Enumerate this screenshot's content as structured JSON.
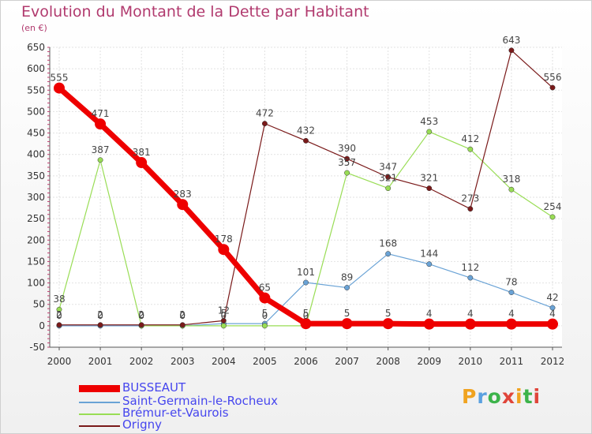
{
  "title": "Evolution du Montant de la Dette par Habitant",
  "unit": "(en €)",
  "brand": {
    "text": "Proxiti",
    "colors": [
      "#f0a320",
      "#5aa0e0",
      "#3cb34a",
      "#e0453a",
      "#f0a320",
      "#3cb34a",
      "#e0453a"
    ]
  },
  "chart_data": {
    "type": "line",
    "title": "Evolution du Montant de la Dette par Habitant",
    "ylabel": "(en €)",
    "x": [
      2000,
      2001,
      2002,
      2003,
      2004,
      2005,
      2006,
      2007,
      2008,
      2009,
      2010,
      2011,
      2012
    ],
    "ylim": [
      -50,
      650
    ],
    "yticks": [
      -50,
      0,
      50,
      100,
      150,
      200,
      250,
      300,
      350,
      400,
      450,
      500,
      550,
      600,
      650
    ],
    "grid": true,
    "legend_position": "bottom-left",
    "series": [
      {
        "name": "BUSSEAUT",
        "color": "#ee0000",
        "width": 7,
        "marker": 7,
        "values": [
          555,
          471,
          381,
          283,
          178,
          65,
          5,
          5,
          5,
          4,
          4,
          4,
          4
        ],
        "labels": [
          "555",
          "471",
          "381",
          "283",
          "178",
          "65",
          "5",
          "5",
          "5",
          "4",
          "4",
          "4",
          "4"
        ]
      },
      {
        "name": "Saint-Germain-le-Rocheux",
        "color": "#6aa3d6",
        "width": 1.2,
        "marker": 3.2,
        "values": [
          0,
          0,
          0,
          0,
          5,
          5,
          101,
          89,
          168,
          144,
          112,
          78,
          42
        ],
        "labels": [
          "0",
          "0",
          "0",
          "0",
          "5",
          "5",
          "101",
          "89",
          "168",
          "144",
          "112",
          "78",
          "42"
        ]
      },
      {
        "name": "Brémur-et-Vaurois",
        "color": "#99dd55",
        "width": 1.2,
        "marker": 3.2,
        "values": [
          38,
          387,
          0,
          0,
          0,
          0,
          0,
          357,
          321,
          453,
          412,
          318,
          254
        ],
        "labels": [
          "38",
          "387",
          "0",
          "0",
          "0",
          "0",
          "0",
          "357",
          "321",
          "453",
          "412",
          "318",
          "254"
        ]
      },
      {
        "name": "Origny",
        "color": "#7a1a1a",
        "width": 1.2,
        "marker": 3.2,
        "values": [
          2,
          2,
          2,
          2,
          12,
          472,
          432,
          390,
          347,
          321,
          273,
          643,
          556
        ],
        "labels": [
          "2",
          "2",
          "2",
          "2",
          "12",
          "472",
          "432",
          "390",
          "347",
          "321",
          "273",
          "643",
          "556"
        ]
      }
    ]
  }
}
